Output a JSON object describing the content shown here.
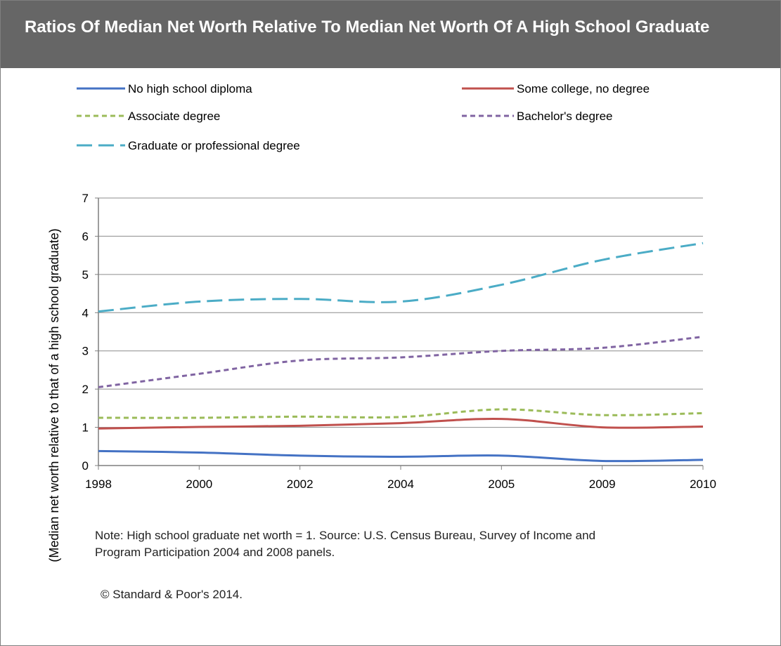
{
  "chart_data": {
    "type": "line",
    "title": "Ratios Of Median Net Worth Relative To Median Net Worth Of A High School Graduate",
    "xlabel": "",
    "ylabel": "(Median net worth relative to that of a high school graduate)",
    "categories": [
      "1998",
      "2000",
      "2002",
      "2004",
      "2005",
      "2009",
      "2010"
    ],
    "ylim": [
      0,
      7
    ],
    "yticks": [
      "0",
      "1",
      "2",
      "3",
      "4",
      "5",
      "6",
      "7"
    ],
    "grid": true,
    "legend_position": "top",
    "series": [
      {
        "name": "No high school diploma",
        "values": [
          0.38,
          0.34,
          0.26,
          0.23,
          0.26,
          0.12,
          0.15
        ],
        "color": "#4472c4",
        "dash": "solid"
      },
      {
        "name": "Some college, no degree",
        "values": [
          0.97,
          1.01,
          1.04,
          1.11,
          1.22,
          1.0,
          1.02
        ],
        "color": "#c0504d",
        "dash": "solid"
      },
      {
        "name": "Associate degree",
        "values": [
          1.25,
          1.25,
          1.28,
          1.27,
          1.47,
          1.32,
          1.37
        ],
        "color": "#9bbb59",
        "dash": "short-dash"
      },
      {
        "name": "Bachelor's degree",
        "values": [
          2.05,
          2.4,
          2.75,
          2.83,
          3.0,
          3.08,
          3.37
        ],
        "color": "#8064a2",
        "dash": "short-dash"
      },
      {
        "name": "Graduate or professional degree",
        "values": [
          4.03,
          4.29,
          4.36,
          4.29,
          4.73,
          5.38,
          5.82
        ],
        "color": "#4bacc6",
        "dash": "long-dash"
      }
    ]
  },
  "notes": {
    "line1": "Note: High school graduate net worth = 1. Source: U.S. Census Bureau, Survey of Income and",
    "line2": "Program Participation 2004 and  2008 panels.",
    "copyright": "© Standard & Poor's 2014."
  }
}
